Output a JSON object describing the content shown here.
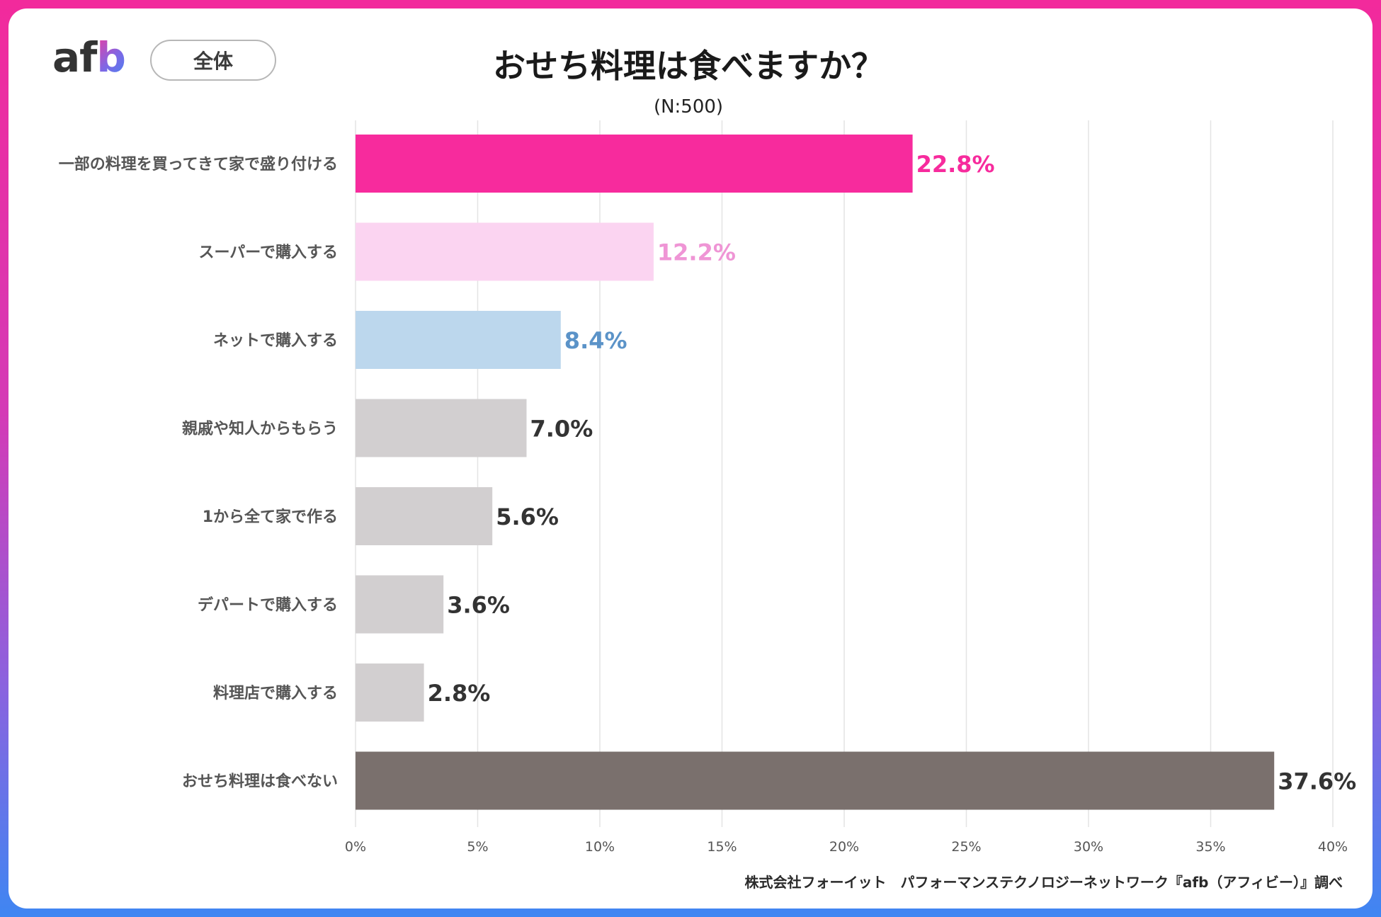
{
  "brand": {
    "logo_a": "a",
    "logo_f": "f",
    "logo_b": "b"
  },
  "header": {
    "scope": "全体",
    "title": "おせち料理は食べますか？",
    "sample": "(N:500)"
  },
  "chart_data": {
    "type": "bar",
    "orientation": "horizontal",
    "title": "おせち料理は食べますか？",
    "subtitle": "(N:500)",
    "categories": [
      "一部の料理を買ってきて家で盛り付ける",
      "スーパーで購入する",
      "ネットで購入する",
      "親戚や知人からもらう",
      "1から全て家で作る",
      "デパートで購入する",
      "料理店で購入する",
      "おせち料理は食べない"
    ],
    "values": [
      22.8,
      12.2,
      8.4,
      7.0,
      5.6,
      3.6,
      2.8,
      37.6
    ],
    "value_labels": [
      "22.8%",
      "12.2%",
      "8.4%",
      "7.0%",
      "5.6%",
      "3.6%",
      "2.8%",
      "37.6%"
    ],
    "bar_colors": [
      "#f72b9d",
      "#fbd4f1",
      "#bcd7ed",
      "#d2cfd0",
      "#d2cfd0",
      "#d2cfd0",
      "#d2cfd0",
      "#7a706d"
    ],
    "label_colors": [
      "#f72b9d",
      "#ef95d5",
      "#5b93c8",
      "#333333",
      "#333333",
      "#333333",
      "#333333",
      "#333333"
    ],
    "xlim": [
      0,
      40
    ],
    "x_ticks": [
      0,
      5,
      10,
      15,
      20,
      25,
      30,
      35,
      40
    ],
    "x_tick_labels": [
      "0%",
      "5%",
      "10%",
      "15%",
      "20%",
      "25%",
      "30%",
      "35%",
      "40%"
    ],
    "xlabel": "",
    "ylabel": "",
    "grid": "vertical"
  },
  "footer": {
    "source": "株式会社フォーイット　パフォーマンステクノロジーネットワーク『afb（アフィビー）』調べ"
  },
  "colors": {
    "frame_top": "#f22a9c",
    "frame_bottom": "#3f86f2",
    "grid": "#e4e4e4"
  }
}
